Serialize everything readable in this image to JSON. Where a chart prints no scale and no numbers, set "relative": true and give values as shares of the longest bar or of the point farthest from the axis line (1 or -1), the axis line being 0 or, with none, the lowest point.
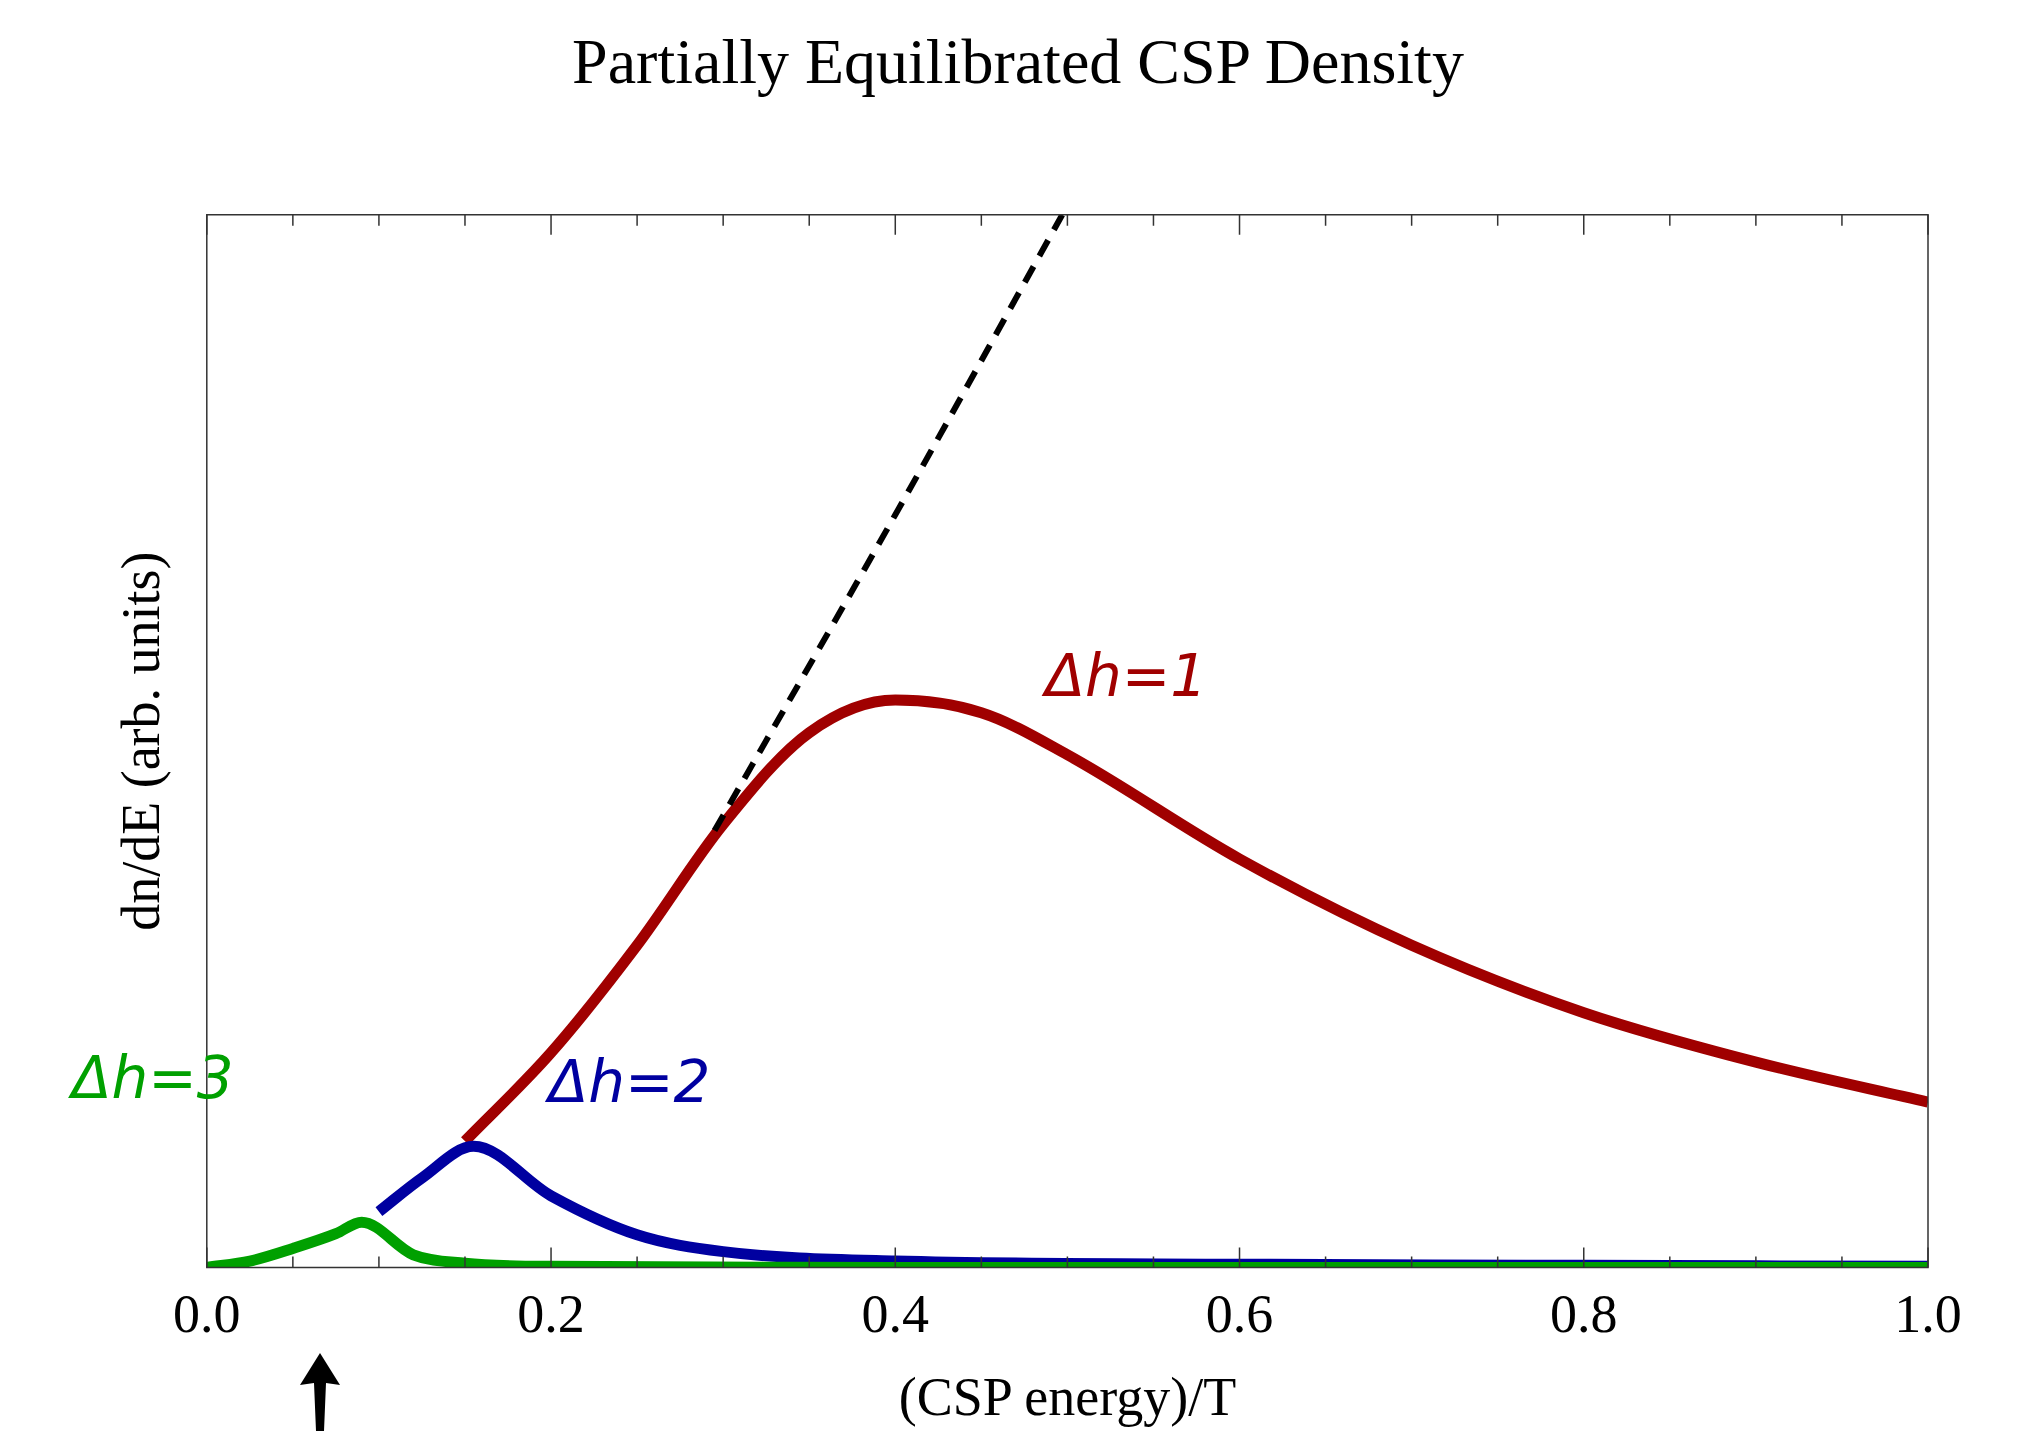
{
  "chart_data": {
    "type": "line",
    "title": "Partially Equilibrated CSP Density",
    "xlabel": "(CSP energy)/T",
    "ylabel": "dn/dE (arb. units)",
    "relative": true,
    "xlim": [
      0,
      1
    ],
    "xticks": [
      {
        "value": 0,
        "label": "0.0"
      },
      {
        "value": 0.2,
        "label": "0.2"
      },
      {
        "value": 0.4,
        "label": "0.4"
      },
      {
        "value": 0.6,
        "label": "0.6"
      },
      {
        "value": 0.8,
        "label": "0.8"
      },
      {
        "value": 1,
        "label": "1.0"
      }
    ],
    "tick_labels": "x",
    "legend": false,
    "grid": false,
    "marker": "none",
    "series": [
      {
        "name": "Δh=1",
        "color": "#a00000",
        "x": [
          0.15,
          0.2,
          0.25,
          0.3,
          0.35,
          0.4,
          0.45,
          0.5,
          0.6,
          0.7,
          0.8,
          0.9,
          1.0
        ],
        "values": [
          0.12,
          0.204,
          0.306,
          0.421,
          0.508,
          0.539,
          0.527,
          0.487,
          0.388,
          0.306,
          0.242,
          0.195,
          0.157
        ]
      },
      {
        "name": "Δh=2",
        "color": "#0000a0",
        "x": [
          0.1,
          0.125,
          0.155,
          0.2,
          0.25,
          0.3,
          0.4,
          0.6,
          0.8,
          1.0
        ],
        "values": [
          0.053,
          0.085,
          0.115,
          0.068,
          0.031,
          0.015,
          0.006,
          0.003,
          0.002,
          0.001
        ]
      },
      {
        "name": "Δh=3",
        "color": "#00a000",
        "x": [
          0,
          0.025,
          0.05,
          0.075,
          0.09,
          0.12,
          0.15,
          0.2,
          0.4,
          0.7,
          1.0
        ],
        "values": [
          0,
          0.006,
          0.018,
          0.032,
          0.043,
          0.012,
          0.004,
          0.001,
          0,
          0,
          0
        ]
      },
      {
        "color": "#000000",
        "line_style": "dashed",
        "x": [
          0.295,
          0.4,
          0.497
        ],
        "values": [
          0.415,
          0.715,
          1.0
        ]
      }
    ]
  }
}
